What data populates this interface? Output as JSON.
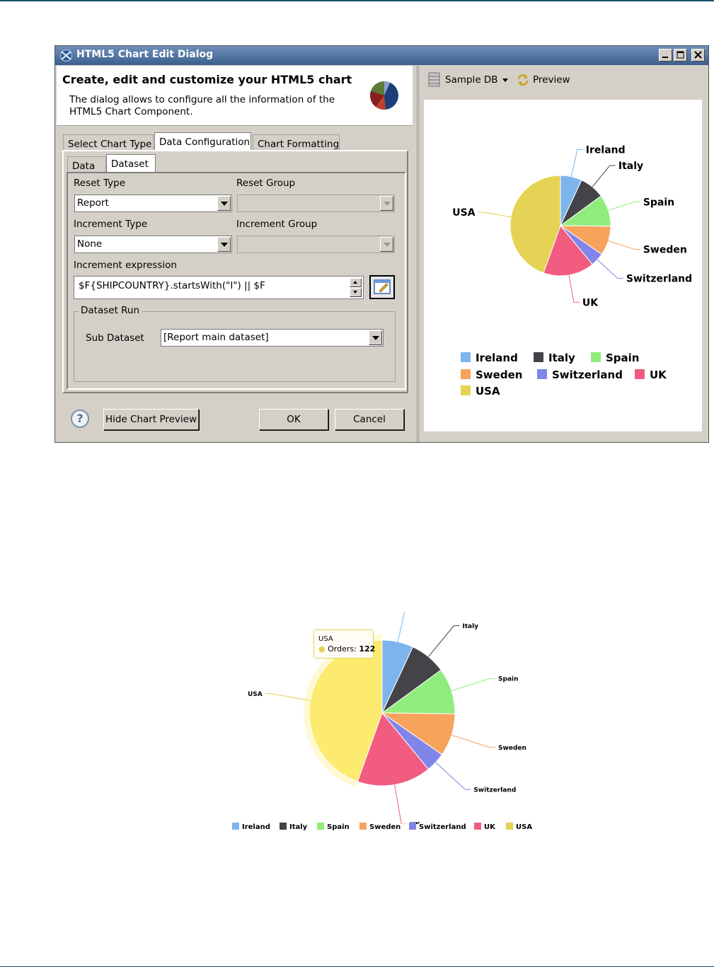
{
  "dialog": {
    "title": "HTML5 Chart Edit Dialog",
    "heading": "Create, edit and customize your HTML5 chart",
    "description": "The dialog allows to configure all the information of the HTML5 Chart Component."
  },
  "tabs": {
    "main": [
      "Select Chart Type",
      "Data Configuration",
      "Chart Formatting"
    ],
    "active_main": "Data Configuration",
    "sub": [
      "Data",
      "Dataset"
    ],
    "active_sub": "Dataset"
  },
  "form": {
    "reset_type_label": "Reset Type",
    "reset_type_value": "Report",
    "reset_group_label": "Reset Group",
    "reset_group_value": "",
    "increment_type_label": "Increment Type",
    "increment_type_value": "None",
    "increment_group_label": "Increment Group",
    "increment_group_value": "",
    "increment_expression_label": "Increment expression",
    "increment_expression_value": "$F{SHIPCOUNTRY}.startsWith(\"I\") || $F",
    "dataset_run_label": "Dataset Run",
    "sub_dataset_label": "Sub Dataset",
    "sub_dataset_value": "[Report main dataset]"
  },
  "buttons": {
    "help": "?",
    "hide_preview": "Hide Chart Preview",
    "ok": "OK",
    "cancel": "Cancel"
  },
  "preview_toolbar": {
    "data_source": "Sample DB",
    "preview": "Preview"
  },
  "colors": {
    "Ireland": "#7cb5ec",
    "Italy": "#434348",
    "Spain": "#90ed7d",
    "Sweden": "#f7a35c",
    "Switzerland": "#8085e9",
    "UK": "#f15c80",
    "USA": "#e4d354",
    "USA_hover": "#fceb6e"
  },
  "chart_data": [
    {
      "type": "pie",
      "categories": [
        "Ireland",
        "Italy",
        "Spain",
        "Sweden",
        "Switzerland",
        "UK",
        "USA"
      ],
      "values": [
        19,
        22,
        28,
        26,
        12,
        45,
        122
      ],
      "legend": "bottom"
    },
    {
      "type": "pie",
      "categories": [
        "Ireland",
        "Italy",
        "Spain",
        "Sweden",
        "Switzerland",
        "UK",
        "USA"
      ],
      "values": [
        19,
        22,
        28,
        26,
        12,
        45,
        122
      ],
      "legend": "bottom",
      "tooltip": {
        "title": "USA",
        "label": "Orders:",
        "value": "122"
      }
    }
  ]
}
